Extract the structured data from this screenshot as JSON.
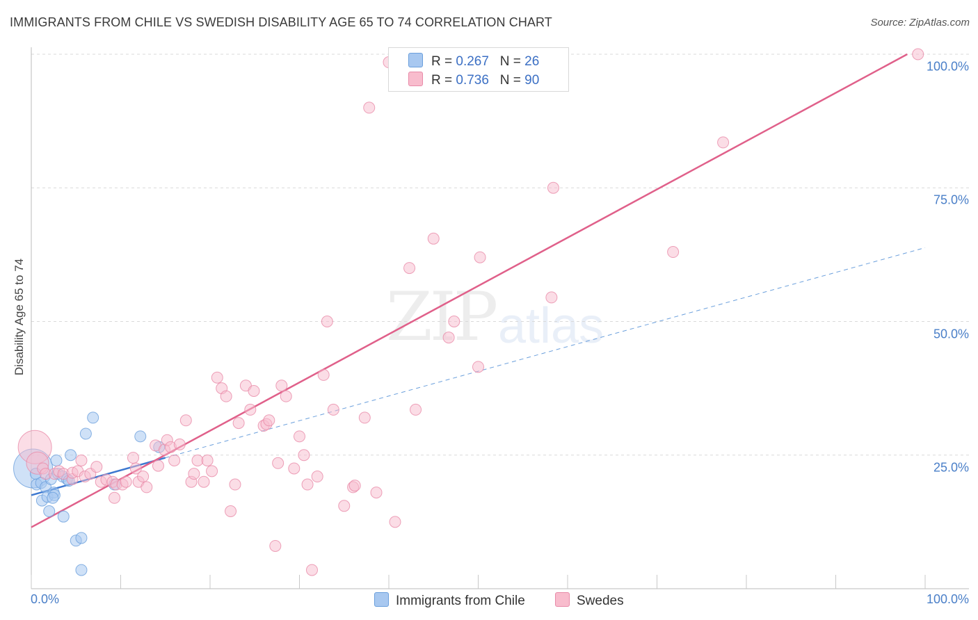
{
  "title": "IMMIGRANTS FROM CHILE VS SWEDISH DISABILITY AGE 65 TO 74 CORRELATION CHART",
  "source": "Source: ZipAtlas.com",
  "watermark": {
    "zip": "ZIP",
    "atlas": "atlas"
  },
  "legend": {
    "r_label": "R =",
    "n_label": "N =",
    "series": [
      {
        "r": "0.267",
        "n": "26",
        "color": "#a8c8f0",
        "border": "#6a9fdc"
      },
      {
        "r": "0.736",
        "n": "90",
        "color": "#f8bccd",
        "border": "#e88aa8"
      }
    ]
  },
  "bottom_legend": [
    {
      "label": "Immigrants from Chile",
      "color": "#a8c8f0",
      "border": "#6a9fdc"
    },
    {
      "label": "Swedes",
      "color": "#f8bccd",
      "border": "#e88aa8"
    }
  ],
  "chart_data": {
    "type": "scatter",
    "title": "IMMIGRANTS FROM CHILE VS SWEDISH DISABILITY AGE 65 TO 74 CORRELATION CHART",
    "xlabel": "",
    "ylabel": "Disability Age 65 to 74",
    "xlim": [
      0,
      100
    ],
    "ylim": [
      0,
      100
    ],
    "x_tick_labels": [
      "0.0%",
      "100.0%"
    ],
    "y_tick_labels": [
      {
        "value": 25,
        "label": "25.0%"
      },
      {
        "value": 50,
        "label": "50.0%"
      },
      {
        "value": 75,
        "label": "75.0%"
      },
      {
        "value": 100,
        "label": "100.0%"
      }
    ],
    "grid": "horizontal dashed",
    "legend_position": "top-center",
    "series": [
      {
        "name": "Immigrants from Chile",
        "color": "#6a9fdc",
        "fill": "#a8c8f0",
        "trend": {
          "x": [
            0,
            15
          ],
          "y": [
            17.5,
            24.5
          ],
          "extended_to": [
            100,
            63.8
          ],
          "extension_style": "dashed"
        },
        "points": [
          [
            0.2,
            22.5,
            3.5
          ],
          [
            0.5,
            21.5,
            1
          ],
          [
            0.6,
            19.5,
            1
          ],
          [
            1.1,
            19.8,
            1
          ],
          [
            1.2,
            16.5,
            1
          ],
          [
            1.6,
            19,
            1
          ],
          [
            1.8,
            17.2,
            1
          ],
          [
            2.0,
            14.5,
            1
          ],
          [
            2.2,
            20.5,
            1
          ],
          [
            2.5,
            18,
            1
          ],
          [
            2.6,
            17.5,
            1
          ],
          [
            2.4,
            17,
            1
          ],
          [
            2.8,
            24,
            1
          ],
          [
            3.0,
            21.5,
            1
          ],
          [
            3.6,
            13.5,
            1
          ],
          [
            3.5,
            21,
            1
          ],
          [
            4.0,
            20.5,
            1
          ],
          [
            4.2,
            20.2,
            1
          ],
          [
            4.4,
            25,
            1
          ],
          [
            5.0,
            9,
            1
          ],
          [
            5.6,
            9.5,
            1
          ],
          [
            5.6,
            3.5,
            1
          ],
          [
            6.1,
            29,
            1
          ],
          [
            6.9,
            32,
            1
          ],
          [
            9.3,
            19.5,
            1
          ],
          [
            12.2,
            28.5,
            1
          ],
          [
            14.3,
            26.5,
            1
          ]
        ]
      },
      {
        "name": "Swedes",
        "color": "#e88aa8",
        "fill": "#f8bccd",
        "trend": {
          "x": [
            0,
            98
          ],
          "y": [
            11.5,
            100
          ]
        },
        "points": [
          [
            0.4,
            26.5,
            3.0
          ],
          [
            0.7,
            23.5,
            2.0
          ],
          [
            1.3,
            22.5,
            1
          ],
          [
            1.6,
            21.5,
            1
          ],
          [
            2.6,
            21.5,
            1
          ],
          [
            3.1,
            22,
            1
          ],
          [
            3.6,
            21.5,
            1
          ],
          [
            4.6,
            20.5,
            1
          ],
          [
            4.6,
            21.7,
            1
          ],
          [
            5.2,
            22,
            1
          ],
          [
            5.6,
            24,
            1
          ],
          [
            6.0,
            21,
            1
          ],
          [
            6.6,
            21.5,
            1
          ],
          [
            7.3,
            22.8,
            1
          ],
          [
            7.8,
            20,
            1
          ],
          [
            8.4,
            20.4,
            1
          ],
          [
            9.1,
            20,
            1
          ],
          [
            9.3,
            17,
            1
          ],
          [
            9.5,
            19.5,
            1
          ],
          [
            10.2,
            19.5,
            1
          ],
          [
            10.6,
            20,
            1
          ],
          [
            11.4,
            24.5,
            1
          ],
          [
            11.7,
            22.5,
            1
          ],
          [
            12.0,
            20,
            1
          ],
          [
            12.5,
            21,
            1
          ],
          [
            12.9,
            19,
            1
          ],
          [
            13.9,
            26.8,
            1
          ],
          [
            14.2,
            23,
            1
          ],
          [
            14.9,
            26,
            1
          ],
          [
            15.2,
            27.8,
            1
          ],
          [
            15.6,
            26.5,
            1
          ],
          [
            16.0,
            24,
            1
          ],
          [
            16.6,
            27,
            1
          ],
          [
            17.3,
            31.5,
            1
          ],
          [
            17.9,
            20,
            1
          ],
          [
            18.2,
            21.5,
            1
          ],
          [
            18.6,
            24,
            1
          ],
          [
            19.3,
            20,
            1
          ],
          [
            19.7,
            24,
            1
          ],
          [
            20.2,
            22,
            1
          ],
          [
            20.8,
            39.5,
            1
          ],
          [
            21.3,
            37.5,
            1
          ],
          [
            21.8,
            36,
            1
          ],
          [
            22.3,
            14.5,
            1
          ],
          [
            22.8,
            19.5,
            1
          ],
          [
            23.2,
            31,
            1
          ],
          [
            24.0,
            38,
            1
          ],
          [
            24.5,
            33.5,
            1
          ],
          [
            24.9,
            37,
            1
          ],
          [
            26.0,
            30.5,
            1
          ],
          [
            26.3,
            30.8,
            1
          ],
          [
            26.6,
            31.5,
            1
          ],
          [
            27.3,
            8,
            1
          ],
          [
            27.6,
            23.5,
            1
          ],
          [
            28.0,
            38,
            1
          ],
          [
            28.5,
            36,
            1
          ],
          [
            29.4,
            22.5,
            1
          ],
          [
            30.0,
            28.5,
            1
          ],
          [
            30.5,
            25,
            1
          ],
          [
            30.9,
            19.5,
            1
          ],
          [
            31.4,
            3.5,
            1
          ],
          [
            32.0,
            21,
            1
          ],
          [
            32.7,
            40,
            1
          ],
          [
            33.1,
            50,
            1
          ],
          [
            33.8,
            33.5,
            1
          ],
          [
            35.0,
            15.5,
            1
          ],
          [
            36.0,
            19,
            1
          ],
          [
            36.2,
            19.3,
            1
          ],
          [
            37.3,
            32,
            1
          ],
          [
            37.8,
            90,
            1
          ],
          [
            38.6,
            18,
            1
          ],
          [
            40.0,
            98.5,
            1
          ],
          [
            40.7,
            12.5,
            1
          ],
          [
            42.3,
            60,
            1
          ],
          [
            43.0,
            33.5,
            1
          ],
          [
            45.0,
            65.5,
            1
          ],
          [
            46.7,
            47,
            1
          ],
          [
            47.3,
            50,
            1
          ],
          [
            47.9,
            98,
            1
          ],
          [
            50.0,
            41.5,
            1
          ],
          [
            50.2,
            62,
            1
          ],
          [
            56.0,
            98.5,
            1
          ],
          [
            58.2,
            54.5,
            1
          ],
          [
            58.4,
            75,
            1
          ],
          [
            71.8,
            63,
            1
          ],
          [
            77.4,
            83.5,
            1
          ],
          [
            99.2,
            100,
            1
          ]
        ]
      }
    ]
  }
}
